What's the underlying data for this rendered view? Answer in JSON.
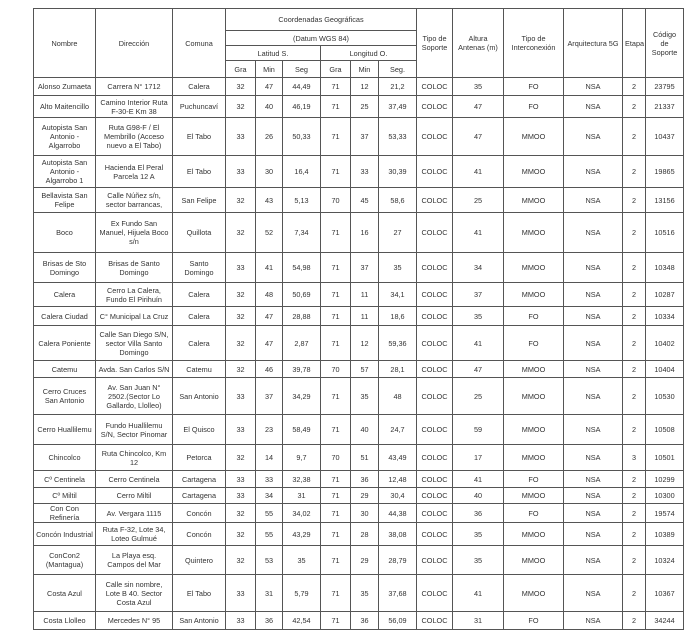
{
  "header": {
    "nombre": "Nombre",
    "direccion": "Dirección",
    "comuna": "Comuna",
    "coordenadas": "Coordenadas Geográficas",
    "datum": "(Datum WGS 84)",
    "latitud": "Latitud S.",
    "longitud": "Longitud O.",
    "gra": "Gra",
    "min": "Min",
    "seg": "Seg",
    "seg2": "Seg.",
    "tipo_soporte": "Tipo de Soporte",
    "altura": "Altura Antenas (m)",
    "tipo_interconexion": "Tipo de Interconexión",
    "arquitectura": "Arquitectura 5G",
    "etapa": "Etapa",
    "codigo": "Código de Soporte"
  },
  "rows": [
    [
      "Alonso Zumaeta",
      "Carrera N° 1712",
      "Calera",
      "32",
      "47",
      "44,49",
      "71",
      "12",
      "21,2",
      "COLOC",
      "35",
      "FO",
      "NSA",
      "2",
      "23795"
    ],
    [
      "Alto Maitencillo",
      "Camino Interior Ruta F-30-E Km 38",
      "Puchuncaví",
      "32",
      "40",
      "46,19",
      "71",
      "25",
      "37,49",
      "COLOC",
      "47",
      "FO",
      "NSA",
      "2",
      "21337"
    ],
    [
      "Autopista San Antonio - Algarrobo",
      "Ruta G98-F / El Membrillo (Acceso nuevo a El Tabo)",
      "El Tabo",
      "33",
      "26",
      "50,33",
      "71",
      "37",
      "53,33",
      "COLOC",
      "47",
      "MMOO",
      "NSA",
      "2",
      "10437"
    ],
    [
      "Autopista San Antonio - Algarrobo 1",
      "Hacienda El Peral Parcela 12 A",
      "El Tabo",
      "33",
      "30",
      "16,4",
      "71",
      "33",
      "30,39",
      "COLOC",
      "41",
      "MMOO",
      "NSA",
      "2",
      "19865"
    ],
    [
      "Bellavista San Felipe",
      "Calle Núñez s/n, sector barrancas,",
      "San Felipe",
      "32",
      "43",
      "5,13",
      "70",
      "45",
      "58,6",
      "COLOC",
      "25",
      "MMOO",
      "NSA",
      "2",
      "13156"
    ],
    [
      "Boco",
      "Ex Fundo San Manuel, Hijuela Boco s/n",
      "Quillota",
      "32",
      "52",
      "7,34",
      "71",
      "16",
      "27",
      "COLOC",
      "41",
      "MMOO",
      "NSA",
      "2",
      "10516"
    ],
    [
      "Brisas de Sto Domingo",
      "Brisas de Santo Domingo",
      "Santo Domingo",
      "33",
      "41",
      "54,98",
      "71",
      "37",
      "35",
      "COLOC",
      "34",
      "MMOO",
      "NSA",
      "2",
      "10348"
    ],
    [
      "Calera",
      "Cerro La Calera, Fundo El Pirihuín",
      "Calera",
      "32",
      "48",
      "50,69",
      "71",
      "11",
      "34,1",
      "COLOC",
      "37",
      "MMOO",
      "NSA",
      "2",
      "10287"
    ],
    [
      "Calera Ciudad",
      "C° Municipal La Cruz",
      "Calera",
      "32",
      "47",
      "28,88",
      "71",
      "11",
      "18,6",
      "COLOC",
      "35",
      "FO",
      "NSA",
      "2",
      "10334"
    ],
    [
      "Calera Poniente",
      "Calle San Diego S/N, sector Villa Santo Domingo",
      "Calera",
      "32",
      "47",
      "2,87",
      "71",
      "12",
      "59,36",
      "COLOC",
      "41",
      "FO",
      "NSA",
      "2",
      "10402"
    ],
    [
      "Catemu",
      "Avda. San Carlos S/N",
      "Catemu",
      "32",
      "46",
      "39,78",
      "70",
      "57",
      "28,1",
      "COLOC",
      "47",
      "MMOO",
      "NSA",
      "2",
      "10404"
    ],
    [
      "Cerro Cruces San Antonio",
      "Av. San Juan N° 2502.(Sector Lo Gallardo, Llolleo)",
      "San Antonio",
      "33",
      "37",
      "34,29",
      "71",
      "35",
      "48",
      "COLOC",
      "25",
      "MMOO",
      "NSA",
      "2",
      "10530"
    ],
    [
      "Cerro Huallilemu",
      "Fundo Huallilemu S/N, Sector Pinomar",
      "El Quisco",
      "33",
      "23",
      "58,49",
      "71",
      "40",
      "24,7",
      "COLOC",
      "59",
      "MMOO",
      "NSA",
      "2",
      "10508"
    ],
    [
      "Chincolco",
      "Ruta Chincolco, Km 12",
      "Petorca",
      "32",
      "14",
      "9,7",
      "70",
      "51",
      "43,49",
      "COLOC",
      "17",
      "MMOO",
      "NSA",
      "3",
      "10501"
    ],
    [
      "Cº Centinela",
      "Cerro Centinela",
      "Cartagena",
      "33",
      "33",
      "32,38",
      "71",
      "36",
      "12,48",
      "COLOC",
      "41",
      "FO",
      "NSA",
      "2",
      "10299"
    ],
    [
      "Cº Miltil",
      "Cerro Miltil",
      "Cartagena",
      "33",
      "34",
      "31",
      "71",
      "29",
      "30,4",
      "COLOC",
      "40",
      "MMOO",
      "NSA",
      "2",
      "10300"
    ],
    [
      "Con Con Refinería",
      "Av. Vergara 1115",
      "Concón",
      "32",
      "55",
      "34,02",
      "71",
      "30",
      "44,38",
      "COLOC",
      "36",
      "FO",
      "NSA",
      "2",
      "19574"
    ],
    [
      "Concón Industrial",
      "Ruta F-32, Lote 34, Loteo Gulmué",
      "Concón",
      "32",
      "55",
      "43,29",
      "71",
      "28",
      "38,08",
      "COLOC",
      "35",
      "MMOO",
      "NSA",
      "2",
      "10389"
    ],
    [
      "ConCon2 (Mantagua)",
      "La Playa esq. Campos del Mar",
      "Quintero",
      "32",
      "53",
      "35",
      "71",
      "29",
      "28,79",
      "COLOC",
      "35",
      "MMOO",
      "NSA",
      "2",
      "10324"
    ],
    [
      "Costa Azul",
      "Calle sin nombre, Lote B 40. Sector Costa Azul",
      "El Tabo",
      "33",
      "31",
      "5,79",
      "71",
      "35",
      "37,68",
      "COLOC",
      "41",
      "MMOO",
      "NSA",
      "2",
      "10367"
    ],
    [
      "Costa Llolleo",
      "Mercedes N° 95",
      "San Antonio",
      "33",
      "36",
      "42,54",
      "71",
      "36",
      "56,09",
      "COLOC",
      "31",
      "FO",
      "NSA",
      "2",
      "34244"
    ]
  ]
}
